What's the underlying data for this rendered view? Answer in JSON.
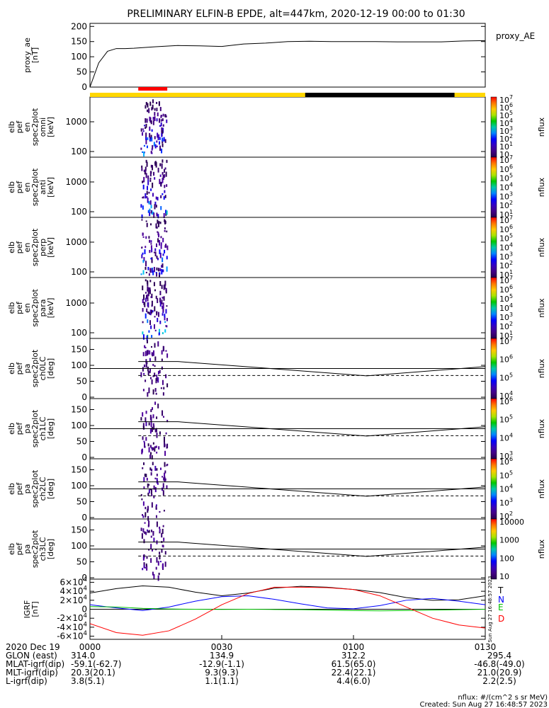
{
  "title": "PRELIMINARY ELFIN-B EPDE, alt=447km, 2020-12-19 00:00 to 01:30",
  "colors": {
    "line": "#000000",
    "red": "#ff0000",
    "yellow": "#ffd700",
    "black": "#000000",
    "blue": "#0000ff",
    "green": "#00c000"
  },
  "chart_data": [
    {
      "type": "line",
      "name": "proxy_ae",
      "ylabel": [
        "proxy_ae",
        "[nT]"
      ],
      "yticks": [
        "0",
        "50",
        "100",
        "150",
        "200"
      ],
      "ylim": [
        0,
        210
      ],
      "legend": "proxy_AE",
      "x_min": [
        0,
        2,
        4,
        6,
        8,
        10,
        15,
        20,
        25,
        30,
        35,
        40,
        45,
        50,
        55,
        60,
        65,
        70,
        75,
        80,
        85,
        90
      ],
      "values": [
        0,
        80,
        118,
        127,
        127,
        128,
        133,
        137,
        136,
        134,
        142,
        145,
        150,
        151,
        150,
        150,
        150,
        149,
        149,
        149,
        152,
        153
      ]
    },
    {
      "type": "heatmap",
      "name": "elb pef en spec2plot omni",
      "ylabel": [
        "elb",
        "pef",
        "en",
        "spec2plot",
        "omni",
        "[keV]"
      ],
      "yticks": [
        "100",
        "1000"
      ],
      "zlabel": "nflux",
      "colorbar": [
        "10",
        "10^1",
        "10^2",
        "10^3",
        "10^4",
        "10^5",
        "10^6",
        "10^7"
      ]
    },
    {
      "type": "heatmap",
      "name": "elb pef en spec2plot anti",
      "ylabel": [
        "elb",
        "pef",
        "en",
        "spec2plot",
        "anti",
        "[keV]"
      ],
      "yticks": [
        "100",
        "1000"
      ],
      "zlabel": "nflux",
      "colorbar": [
        "10^1",
        "10^2",
        "10^3",
        "10^4",
        "10^5",
        "10^6",
        "10^7"
      ]
    },
    {
      "type": "heatmap",
      "name": "elb pef en spec2plot perp",
      "ylabel": [
        "elb",
        "pef",
        "en",
        "spec2plot",
        "perp",
        "[keV]"
      ],
      "yticks": [
        "100",
        "1000"
      ],
      "zlabel": "nflux",
      "colorbar": [
        "10^1",
        "10^2",
        "10^3",
        "10^4",
        "10^5",
        "10^6",
        "10^7"
      ]
    },
    {
      "type": "heatmap",
      "name": "elb pef en spec2plot para",
      "ylabel": [
        "elb",
        "pef",
        "en",
        "spec2plot",
        "para",
        "[keV]"
      ],
      "yticks": [
        "100",
        "1000"
      ],
      "zlabel": "nflux",
      "colorbar": [
        "10^1",
        "10^2",
        "10^3",
        "10^4",
        "10^5",
        "10^6",
        "10^7"
      ]
    },
    {
      "type": "heatmap",
      "name": "elb pef pa spec2plot ch0LC",
      "ylabel": [
        "elb",
        "pef",
        "pa",
        "spec2plot",
        "ch0LC",
        "[deg]"
      ],
      "yticks": [
        "0",
        "50",
        "100",
        "150"
      ],
      "zlabel": "nflux",
      "colorbar": [
        "10^4",
        "10^5",
        "10^6",
        "10^7"
      ]
    },
    {
      "type": "heatmap",
      "name": "elb pef pa spec2plot ch1LC",
      "ylabel": [
        "elb",
        "pef",
        "pa",
        "spec2plot",
        "ch1LC",
        "[deg]"
      ],
      "yticks": [
        "0",
        "50",
        "100",
        "150"
      ],
      "zlabel": "nflux",
      "colorbar": [
        "10^3",
        "10^4",
        "10^5",
        "10^6"
      ]
    },
    {
      "type": "heatmap",
      "name": "elb pef pa spec2plot ch2LC",
      "ylabel": [
        "elb",
        "pef",
        "pa",
        "spec2plot",
        "ch2LC",
        "[deg]"
      ],
      "yticks": [
        "0",
        "50",
        "100",
        "150"
      ],
      "zlabel": "nflux",
      "colorbar": [
        "10^2",
        "10^3",
        "10^4",
        "10^5",
        "10^6"
      ]
    },
    {
      "type": "heatmap",
      "name": "elb pef pa spec2plot ch3LC",
      "ylabel": [
        "elb",
        "pef",
        "pa",
        "spec2plot",
        "ch3LC",
        "[deg]"
      ],
      "yticks": [
        "0",
        "50",
        "100",
        "150"
      ],
      "zlabel": "nflux",
      "colorbar": [
        "10",
        "100",
        "1000",
        "10000"
      ]
    },
    {
      "type": "line",
      "name": "IGRF",
      "ylabel": [
        "IGRF",
        "[nT]"
      ],
      "yticks": [
        "-6x10^4",
        "-4x10^4",
        "-2x10^4",
        "0",
        "2x10^4",
        "4x10^4",
        "6x10^4"
      ],
      "ylim": [
        -67000,
        67000
      ],
      "series": [
        {
          "name": "T",
          "color": "#000000",
          "x_min": [
            0,
            6,
            12,
            18,
            24,
            30,
            36,
            42,
            48,
            54,
            60,
            66,
            72,
            78,
            84,
            90
          ],
          "values": [
            36000,
            46000,
            52000,
            49000,
            38000,
            30000,
            36000,
            47000,
            51000,
            49000,
            44000,
            37000,
            26000,
            20000,
            21000,
            30000
          ]
        },
        {
          "name": "N",
          "color": "#0000ff",
          "x_min": [
            0,
            6,
            12,
            18,
            24,
            30,
            36,
            42,
            48,
            54,
            60,
            66,
            72,
            78,
            84,
            90
          ],
          "values": [
            10000,
            3000,
            -3000,
            5000,
            18000,
            28000,
            30000,
            22000,
            12000,
            3000,
            1000,
            8000,
            20000,
            24000,
            18000,
            10000
          ]
        },
        {
          "name": "E",
          "color": "#00c000",
          "x_min": [
            0,
            6,
            12,
            18,
            24,
            30,
            36,
            42,
            48,
            54,
            60,
            66,
            72,
            78,
            84,
            90
          ],
          "values": [
            6000,
            5000,
            2000,
            500,
            0,
            -300,
            0,
            -500,
            -1000,
            -2000,
            -3000,
            -3500,
            -3000,
            -2000,
            -1000,
            0
          ]
        },
        {
          "name": "D",
          "color": "#ff0000",
          "x_min": [
            0,
            6,
            12,
            18,
            24,
            30,
            36,
            42,
            48,
            54,
            60,
            66,
            72,
            78,
            84,
            90
          ],
          "values": [
            -32000,
            -52000,
            -58000,
            -48000,
            -22000,
            10000,
            35000,
            49000,
            49000,
            48000,
            44000,
            30000,
            5000,
            -20000,
            -35000,
            -42000
          ]
        }
      ],
      "side_stamp": "Sun Aug 27 16:48:57 2023"
    }
  ],
  "timeline": {
    "red_range_min": [
      11,
      17.6
    ],
    "black_range_min": [
      49,
      83
    ]
  },
  "x_axis": {
    "labels": [
      "0000",
      "0030",
      "0100",
      "0130"
    ],
    "rows": [
      {
        "label": "2020 Dec 19",
        "values": [
          "",
          "",
          "",
          ""
        ]
      },
      {
        "label": "GLON (east)",
        "values": [
          "314.0",
          "134.9",
          "312.2",
          "295.4"
        ]
      },
      {
        "label": "MLAT-igrf(dip)",
        "values": [
          "-59.1(-62.7)",
          "-12.9(-1.1)",
          "61.5(65.0)",
          "-46.8(-49.0)"
        ]
      },
      {
        "label": "MLT-igrf(dip)",
        "values": [
          "20.3(20.1)",
          "9.3(9.3)",
          "22.4(22.1)",
          "21.0(20.9)"
        ]
      },
      {
        "label": "L-igrf(dip)",
        "values": [
          "3.8(5.1)",
          "1.1(1.1)",
          "4.4(6.0)",
          "2.2(2.5)"
        ]
      }
    ]
  },
  "footer": {
    "units": "nflux: #/(cm^2 s sr MeV)",
    "created": "Created: Sun Aug 27 16:48:57 2023"
  }
}
